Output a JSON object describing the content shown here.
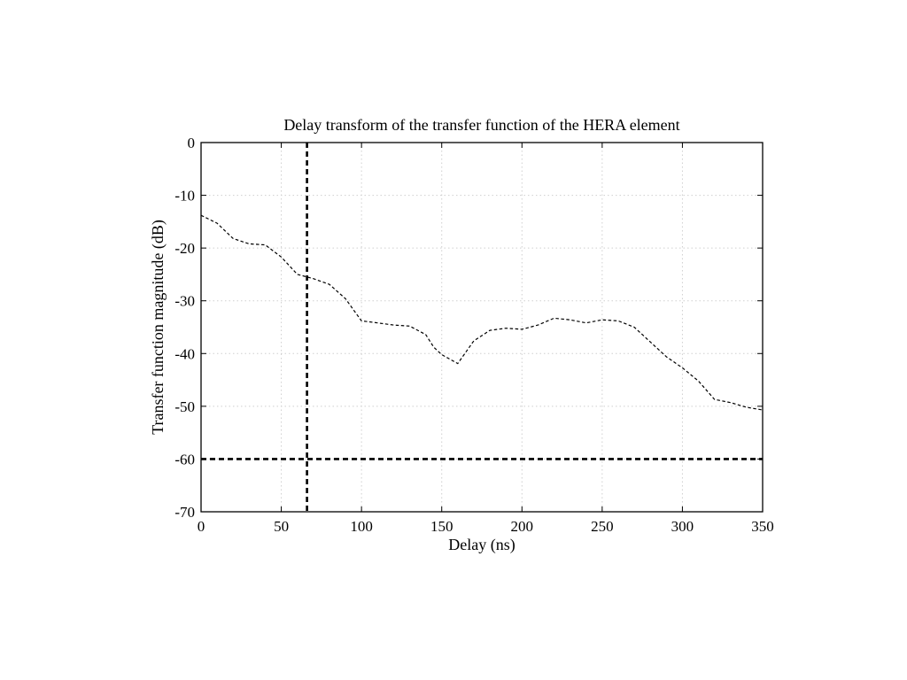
{
  "chart_data": {
    "type": "line",
    "title": "Delay transform of the transfer function of the HERA element",
    "xlabel": "Delay (ns)",
    "ylabel": "Transfer function magnitude (dB)",
    "xlim": [
      0,
      350
    ],
    "ylim": [
      -70,
      0
    ],
    "xticks": [
      0,
      50,
      100,
      150,
      200,
      250,
      300,
      350
    ],
    "yticks": [
      0,
      -10,
      -20,
      -30,
      -40,
      -50,
      -60,
      -70
    ],
    "xtick_labels": [
      "0",
      "50",
      "100",
      "150",
      "200",
      "250",
      "300",
      "350"
    ],
    "ytick_labels": [
      "0",
      "-10",
      "-20",
      "-30",
      "-40",
      "-50",
      "-60",
      "-70"
    ],
    "grid": true,
    "legend": "none",
    "series": [
      {
        "style": "dashed",
        "color": "#000000",
        "x": [
          0,
          10,
          20,
          30,
          40,
          50,
          60,
          70,
          80,
          90,
          100,
          110,
          120,
          130,
          140,
          145,
          150,
          160,
          170,
          180,
          190,
          200,
          210,
          220,
          230,
          240,
          250,
          260,
          270,
          280,
          290,
          300,
          310,
          320,
          330,
          340,
          350
        ],
        "y": [
          -13.8,
          -15.3,
          -18.2,
          -19.2,
          -19.4,
          -21.7,
          -25.0,
          -25.8,
          -26.9,
          -29.6,
          -33.8,
          -34.2,
          -34.6,
          -34.8,
          -36.4,
          -38.8,
          -40.2,
          -41.9,
          -37.6,
          -35.6,
          -35.2,
          -35.4,
          -34.6,
          -33.3,
          -33.6,
          -34.2,
          -33.6,
          -33.8,
          -35.0,
          -37.8,
          -40.6,
          -42.7,
          -45.2,
          -48.7,
          -49.3,
          -50.2,
          -50.7
        ]
      },
      {
        "style": "thick-dashed",
        "color": "#000000",
        "x": [
          0,
          350
        ],
        "y": [
          -60,
          -60
        ]
      },
      {
        "style": "thick-dashed",
        "color": "#000000",
        "x": [
          66,
          66
        ],
        "y": [
          0,
          -70
        ]
      }
    ]
  }
}
